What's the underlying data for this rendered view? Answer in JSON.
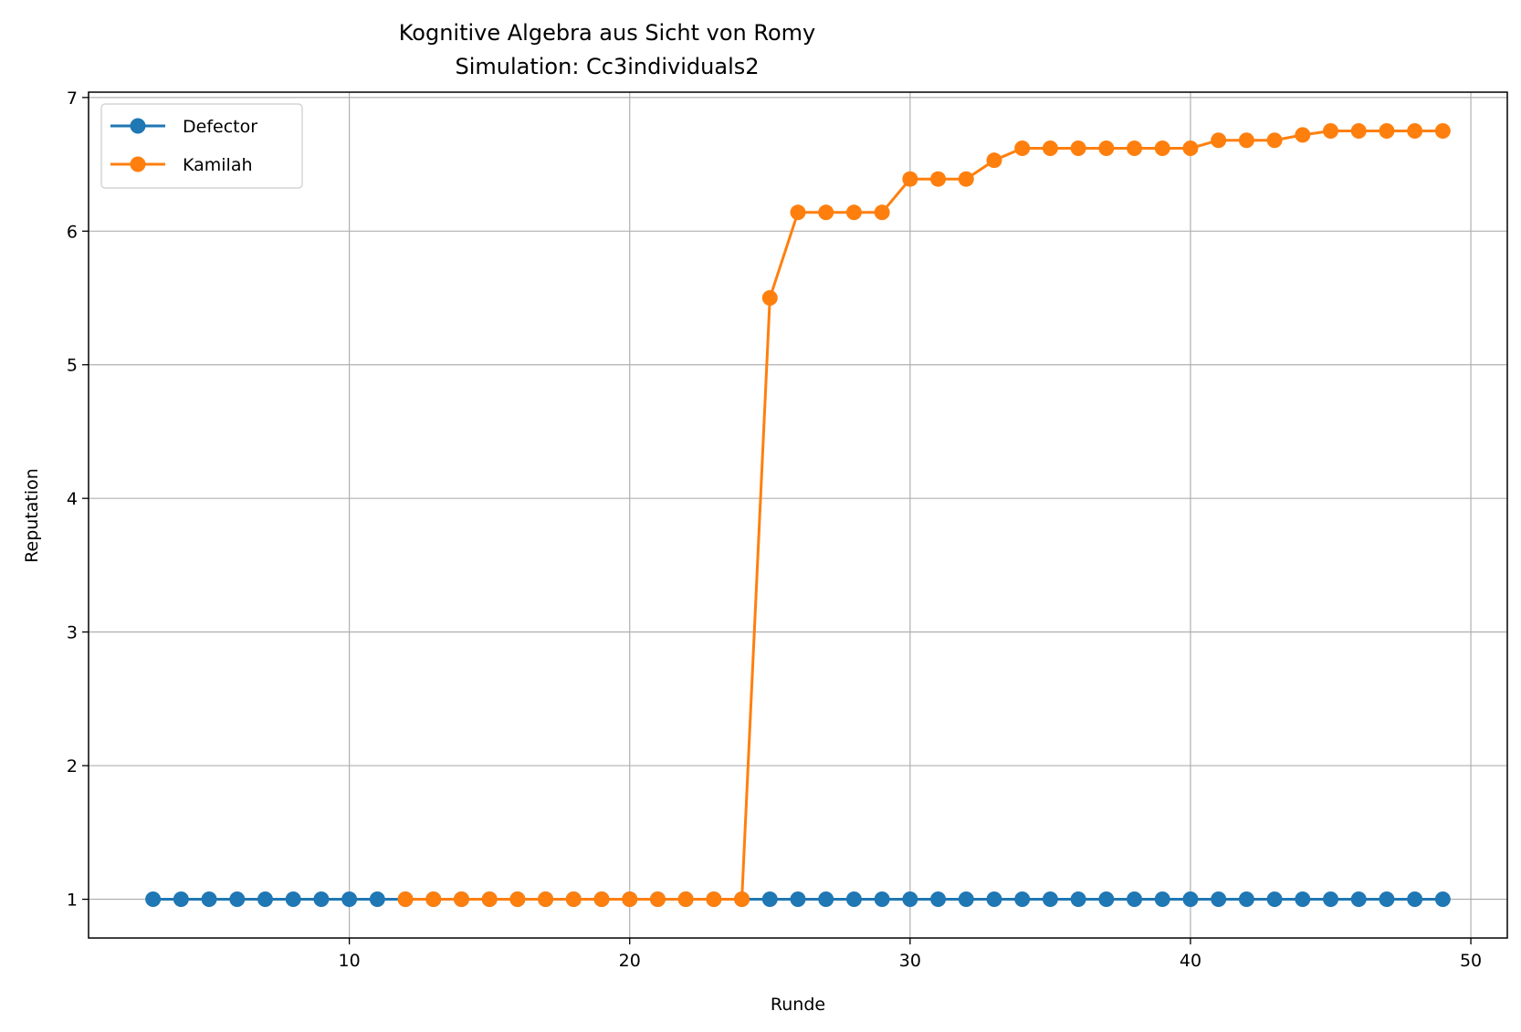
{
  "chart_data": {
    "type": "line",
    "title": "Kognitive Algebra aus Sicht von Romy",
    "subtitle": "Simulation: Cc3individuals2",
    "xlabel": "Runde",
    "ylabel": "Reputation",
    "xlim": [
      0.7,
      51.3
    ],
    "ylim": [
      0.71,
      7.04
    ],
    "xticks": [
      10,
      20,
      30,
      40,
      50
    ],
    "yticks": [
      1,
      2,
      3,
      4,
      5,
      6,
      7
    ],
    "grid": true,
    "legend_position": "top-left",
    "series": [
      {
        "name": "Defector",
        "color": "#1f77b4",
        "x": [
          3,
          4,
          5,
          6,
          7,
          8,
          9,
          10,
          11,
          12,
          13,
          14,
          15,
          16,
          17,
          18,
          19,
          20,
          21,
          22,
          23,
          24,
          25,
          26,
          27,
          28,
          29,
          30,
          31,
          32,
          33,
          34,
          35,
          36,
          37,
          38,
          39,
          40,
          41,
          42,
          43,
          44,
          45,
          46,
          47,
          48,
          49
        ],
        "y": [
          1,
          1,
          1,
          1,
          1,
          1,
          1,
          1,
          1,
          1,
          1,
          1,
          1,
          1,
          1,
          1,
          1,
          1,
          1,
          1,
          1,
          1,
          1,
          1,
          1,
          1,
          1,
          1,
          1,
          1,
          1,
          1,
          1,
          1,
          1,
          1,
          1,
          1,
          1,
          1,
          1,
          1,
          1,
          1,
          1,
          1,
          1
        ]
      },
      {
        "name": "Kamilah",
        "color": "#ff7f0e",
        "x": [
          12,
          13,
          14,
          15,
          16,
          17,
          18,
          19,
          20,
          21,
          22,
          23,
          24,
          25,
          26,
          27,
          28,
          29,
          30,
          31,
          32,
          33,
          34,
          35,
          36,
          37,
          38,
          39,
          40,
          41,
          42,
          43,
          44,
          45,
          46,
          47,
          48,
          49
        ],
        "y": [
          1,
          1,
          1,
          1,
          1,
          1,
          1,
          1,
          1,
          1,
          1,
          1,
          1,
          5.5,
          6.14,
          6.14,
          6.14,
          6.14,
          6.39,
          6.39,
          6.39,
          6.53,
          6.62,
          6.62,
          6.62,
          6.62,
          6.62,
          6.62,
          6.62,
          6.68,
          6.68,
          6.68,
          6.72,
          6.75,
          6.75,
          6.75,
          6.75,
          6.75
        ]
      }
    ]
  }
}
